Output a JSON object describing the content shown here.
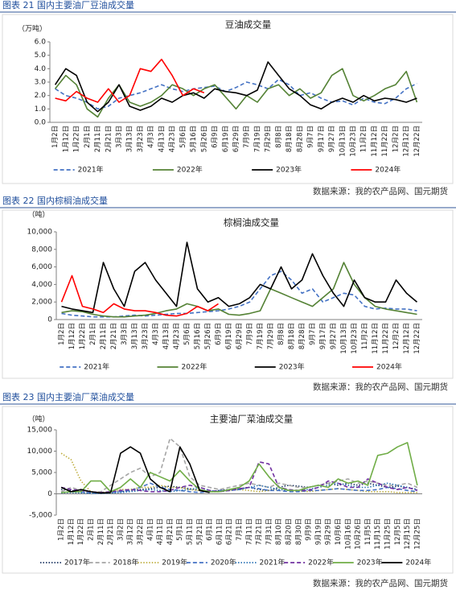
{
  "figures": [
    {
      "caption": "图表 21 国内主要油厂豆油成交量",
      "source": "数据来源：我的农产品网、国元期货"
    },
    {
      "caption": "图表 22 国内棕榈油成交量",
      "source": "数据来源：我的农产品网、国元期货"
    },
    {
      "caption": "图表 23 国内主要油厂菜油成交量",
      "source": "数据来源：我的农产品网、国元期货"
    }
  ],
  "chart_data": [
    {
      "type": "line",
      "title": "豆油成交量",
      "y_label": "（万吨）",
      "grid": false,
      "categories": [
        "1月2日",
        "1月12日",
        "1月22日",
        "2月1日",
        "2月11日",
        "2月21日",
        "3月3日",
        "3月13日",
        "3月23日",
        "4月3日",
        "4月13日",
        "4月23日",
        "5月6日",
        "5月16日",
        "5月26日",
        "6月9日",
        "6月19日",
        "6月29日",
        "7月9日",
        "7月19日",
        "7月29日",
        "8月8日",
        "8月18日",
        "8月28日",
        "9月7日",
        "9月17日",
        "9月27日",
        "10月13日",
        "10月23日",
        "11月2日",
        "11月12日",
        "11月22日",
        "12月2日",
        "12月12日",
        "12月22日"
      ],
      "ylim": [
        0,
        6
      ],
      "yticks": [
        {
          "value": 0,
          "label": "0.0"
        },
        {
          "value": 1,
          "label": "1.0"
        },
        {
          "value": 2,
          "label": "2.0"
        },
        {
          "value": 3,
          "label": "3.0"
        },
        {
          "value": 4,
          "label": "4.0"
        },
        {
          "value": 5,
          "label": "5.0"
        },
        {
          "value": 6,
          "label": "6.0"
        }
      ],
      "series": [
        {
          "name": "2021年",
          "color": "#4472c4",
          "dash": "dashed",
          "values": [
            2.5,
            2.0,
            1.8,
            1.5,
            1.0,
            1.2,
            1.8,
            2.0,
            2.2,
            2.5,
            2.8,
            2.5,
            2.3,
            2.5,
            2.6,
            2.7,
            2.3,
            2.6,
            3.0,
            2.8,
            2.5,
            3.2,
            2.8,
            2.0,
            2.2,
            1.8,
            1.5,
            1.6,
            1.3,
            1.8,
            1.5,
            1.4,
            1.8,
            2.5,
            2.9
          ]
        },
        {
          "name": "2022年",
          "color": "#548235",
          "dash": "solid",
          "values": [
            2.5,
            3.5,
            2.8,
            1.0,
            0.4,
            1.8,
            2.8,
            1.5,
            1.2,
            1.5,
            2.0,
            2.8,
            2.5,
            2.0,
            2.5,
            2.8,
            1.9,
            1.0,
            2.0,
            1.5,
            2.5,
            2.8,
            2.0,
            2.5,
            1.8,
            2.2,
            3.5,
            4.0,
            2.0,
            1.6,
            2.0,
            2.5,
            2.8,
            3.8,
            1.5
          ]
        },
        {
          "name": "2023年",
          "color": "#000000",
          "dash": "solid",
          "values": [
            2.8,
            4.0,
            3.5,
            1.5,
            0.8,
            1.5,
            2.8,
            1.2,
            0.9,
            1.2,
            1.8,
            1.5,
            2.0,
            2.2,
            1.8,
            2.5,
            2.3,
            2.2,
            2.0,
            2.4,
            4.5,
            3.5,
            2.5,
            2.0,
            1.3,
            1.0,
            1.5,
            1.8,
            1.5,
            2.0,
            1.6,
            1.8,
            1.7,
            1.5,
            1.8
          ]
        },
        {
          "name": "2024年",
          "color": "#ff0000",
          "dash": "solid",
          "values": [
            1.8,
            1.6,
            2.3,
            1.8,
            1.5,
            2.5,
            1.5,
            2.0,
            4.0,
            3.8,
            4.7,
            3.5,
            2.0,
            2.5,
            2.2,
            null,
            null,
            null,
            null,
            null,
            null,
            null,
            null,
            null,
            null,
            null,
            null,
            null,
            null,
            null,
            null,
            null,
            null,
            null,
            null
          ]
        }
      ]
    },
    {
      "type": "line",
      "title": "棕榈油成交量",
      "y_label": "（吨）",
      "grid": false,
      "categories": [
        "1月2日",
        "1月12日",
        "1月22日",
        "2月1日",
        "2月11日",
        "2月21日",
        "3月3日",
        "3月13日",
        "3月23日",
        "4月3日",
        "4月13日",
        "4月23日",
        "5月6日",
        "5月16日",
        "5月26日",
        "6月9日",
        "6月19日",
        "6月29日",
        "7月9日",
        "7月19日",
        "7月29日",
        "8月8日",
        "8月18日",
        "8月28日",
        "9月7日",
        "9月17日",
        "9月27日",
        "10月13日",
        "10月23日",
        "11月2日",
        "11月12日",
        "11月22日",
        "12月2日",
        "12月12日",
        "12月22日"
      ],
      "ylim": [
        0,
        10000
      ],
      "yticks": [
        0,
        {
          "value": 2000,
          "label": "2,000"
        },
        {
          "value": 4000,
          "label": "4,000"
        },
        {
          "value": 6000,
          "label": "6,000"
        },
        {
          "value": 8000,
          "label": "8,000"
        },
        {
          "value": 10000,
          "label": "10,000"
        }
      ],
      "series": [
        {
          "name": "2021年",
          "color": "#4472c4",
          "dash": "dashed",
          "values": [
            700,
            500,
            400,
            300,
            300,
            300,
            400,
            500,
            400,
            500,
            600,
            700,
            700,
            800,
            900,
            1000,
            1200,
            1500,
            2000,
            3500,
            5000,
            5500,
            4500,
            3000,
            3500,
            2000,
            2500,
            3000,
            2800,
            1500,
            1200,
            1300,
            1200,
            1200,
            1000
          ]
        },
        {
          "name": "2022年",
          "color": "#548235",
          "dash": "solid",
          "values": [
            800,
            1000,
            900,
            600,
            400,
            300,
            300,
            400,
            500,
            700,
            1000,
            1200,
            1800,
            1500,
            1000,
            1200,
            600,
            500,
            700,
            1000,
            3500,
            3000,
            2500,
            2000,
            1500,
            2500,
            3500,
            6500,
            4000,
            2500,
            1500,
            1200,
            1000,
            800,
            600
          ]
        },
        {
          "name": "2023年",
          "color": "#000000",
          "dash": "solid",
          "values": [
            1500,
            1200,
            1000,
            800,
            6500,
            3500,
            1500,
            5500,
            6500,
            4500,
            3000,
            1500,
            8800,
            3500,
            2000,
            2500,
            1500,
            1800,
            2500,
            4000,
            3500,
            6000,
            3500,
            4500,
            7500,
            5000,
            3000,
            1500,
            4500,
            2500,
            2000,
            2000,
            4500,
            3000,
            2000
          ]
        },
        {
          "name": "2024年",
          "color": "#ff0000",
          "dash": "solid",
          "values": [
            2000,
            5000,
            1500,
            1200,
            800,
            1800,
            1200,
            1000,
            1000,
            800,
            500,
            400,
            700,
            1500,
            1000,
            1800,
            null,
            null,
            null,
            null,
            null,
            null,
            null,
            null,
            null,
            null,
            null,
            null,
            null,
            null,
            null,
            null,
            null,
            null,
            null
          ]
        }
      ]
    },
    {
      "type": "line",
      "title": "主要油厂菜油成交量",
      "y_label": "（吨）",
      "grid": false,
      "categories": [
        "1月2日",
        "1月12日",
        "1月22日",
        "2月1日",
        "2月11日",
        "2月21日",
        "3月2日",
        "3月12日",
        "3月22日",
        "4月1日",
        "4月11日",
        "4月21日",
        "5月1日",
        "5月11日",
        "5月21日",
        "6月1日",
        "6月11日",
        "6月21日",
        "7月1日",
        "7月11日",
        "7月21日",
        "7月31日",
        "8月10日",
        "8月20日",
        "8月30日",
        "9月9日",
        "9月19日",
        "9月29日",
        "10月6日",
        "10月16日",
        "10月26日",
        "11月5日",
        "11月15日",
        "11月25日",
        "12月5日",
        "12月15日",
        "12月25日"
      ],
      "ylim": [
        -5000,
        15000
      ],
      "yticks": [
        {
          "value": -5000,
          "label": "-5,000"
        },
        0,
        {
          "value": 5000,
          "label": "5,000"
        },
        {
          "value": 10000,
          "label": "10,000"
        },
        {
          "value": 15000,
          "label": "15,000"
        }
      ],
      "series": [
        {
          "name": "2017年",
          "color": "#1f3864",
          "dash": "dotted",
          "values": [
            1000,
            800,
            500,
            300,
            200,
            300,
            500,
            800,
            1000,
            1200,
            1500,
            1800,
            1500,
            1200,
            800,
            500,
            800,
            1000,
            1200,
            1500,
            1000,
            800,
            1500,
            2000,
            1800,
            1500,
            2000,
            2500,
            2000,
            2500,
            2000,
            2500,
            2000,
            1500,
            1800,
            1500,
            1000
          ]
        },
        {
          "name": "2018年",
          "color": "#a5a5a5",
          "dash": "dashed",
          "values": [
            500,
            1500,
            800,
            300,
            500,
            2000,
            3500,
            5000,
            6000,
            4000,
            5000,
            13000,
            11000,
            4000,
            2000,
            1500,
            1000,
            1500,
            2000,
            2500,
            2000,
            1500,
            2500,
            2000,
            1500,
            1500,
            2000,
            2500,
            3000,
            3500,
            2500,
            3000,
            2500,
            2000,
            2000,
            2500,
            1500
          ]
        },
        {
          "name": "2019年",
          "color": "#bfae3f",
          "dash": "dotted",
          "values": [
            9500,
            8000,
            3000,
            500,
            300,
            500,
            1000,
            1000,
            1500,
            1500,
            2000,
            1500,
            1500,
            1000,
            800,
            500,
            500,
            800,
            1000,
            800,
            500,
            800,
            1000,
            800,
            600,
            500,
            800,
            1000,
            1200,
            1000,
            800,
            500,
            500,
            500,
            300,
            300,
            300
          ]
        },
        {
          "name": "2020年",
          "color": "#4472c4",
          "dash": "dashed",
          "values": [
            300,
            500,
            400,
            200,
            200,
            300,
            500,
            800,
            1500,
            2500,
            1500,
            1000,
            800,
            500,
            300,
            500,
            800,
            800,
            1000,
            1500,
            1200,
            800,
            800,
            500,
            500,
            800,
            800,
            1000,
            1200,
            1000,
            800,
            800,
            1000,
            1500,
            1200,
            800,
            500
          ]
        },
        {
          "name": "2021年",
          "color": "#2e75b6",
          "dash": "dotted",
          "values": [
            200,
            300,
            200,
            100,
            100,
            200,
            300,
            500,
            800,
            1000,
            800,
            500,
            800,
            1000,
            1500,
            800,
            500,
            800,
            1000,
            1500,
            2000,
            1500,
            1000,
            800,
            800,
            1000,
            1500,
            2000,
            2500,
            2000,
            1500,
            1500,
            2000,
            2500,
            2000,
            1500,
            1000
          ]
        },
        {
          "name": "2022年",
          "color": "#7030a0",
          "dash": "dashed",
          "values": [
            1500,
            1000,
            800,
            500,
            300,
            500,
            800,
            1000,
            800,
            500,
            500,
            800,
            1500,
            2000,
            1500,
            800,
            500,
            800,
            1200,
            1500,
            7500,
            7000,
            1500,
            1000,
            800,
            800,
            1500,
            3000,
            2500,
            1500,
            1500,
            3500,
            2500,
            1500,
            1000,
            1500,
            800
          ]
        },
        {
          "name": "2023年",
          "color": "#70ad47",
          "dash": "solid",
          "values": [
            300,
            500,
            500,
            3000,
            3000,
            500,
            1500,
            3500,
            1500,
            5000,
            4000,
            3000,
            5500,
            3000,
            1000,
            500,
            500,
            1000,
            1500,
            3000,
            7000,
            4000,
            1500,
            800,
            800,
            1500,
            2000,
            1500,
            3500,
            2500,
            3000,
            2000,
            9000,
            9500,
            11000,
            12000,
            2000
          ]
        },
        {
          "name": "2024年",
          "color": "#000000",
          "dash": "solid",
          "values": [
            1500,
            500,
            1000,
            500,
            200,
            300,
            9500,
            11000,
            9500,
            3500,
            1500,
            500,
            11000,
            7000,
            800,
            300,
            null,
            null,
            null,
            null,
            null,
            null,
            null,
            null,
            null,
            null,
            null,
            null,
            null,
            null,
            null,
            null,
            null,
            null,
            null,
            null,
            null
          ]
        }
      ]
    }
  ]
}
